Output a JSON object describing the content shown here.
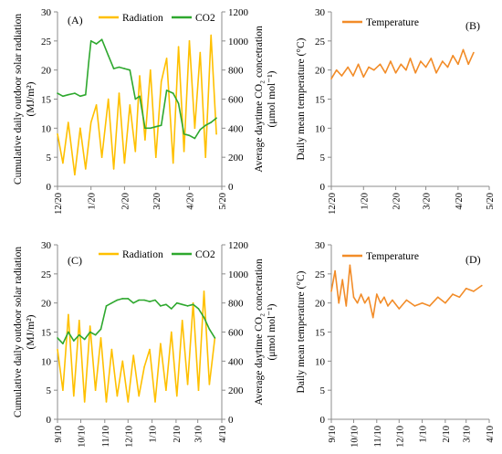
{
  "colors": {
    "radiation": "#FFC000",
    "co2": "#2EA82E",
    "temperature": "#F28C28",
    "axis": "#8c8c8c",
    "text": "#000000"
  },
  "chart_data": [
    {
      "panel": "(A)",
      "type": "line",
      "ylabel_left": "Cumulative daily outdoor solar radiation (MJ/m²)",
      "ylabel_right": "Average daytime CO₂ concetration (μmol mol⁻¹)",
      "ylim_left": [
        0,
        30
      ],
      "ylim_right": [
        0,
        1200
      ],
      "yticks_left": [
        0,
        5,
        10,
        15,
        20,
        25,
        30
      ],
      "yticks_right": [
        0,
        200,
        400,
        600,
        800,
        1000,
        1200
      ],
      "xlim": [
        "2019-12-20",
        "2020-05-20"
      ],
      "xticks": [
        "12/20",
        "1/20",
        "2/20",
        "3/20",
        "4/20",
        "5/20"
      ],
      "legend": [
        "Radiation",
        "CO2"
      ],
      "legend_position": "top",
      "series": [
        {
          "name": "Radiation",
          "axis": "left",
          "x": [
            "2019-12-20",
            "2019-12-25",
            "2019-12-30",
            "2020-01-05",
            "2020-01-10",
            "2020-01-15",
            "2020-01-20",
            "2020-01-25",
            "2020-01-30",
            "2020-02-05",
            "2020-02-10",
            "2020-02-15",
            "2020-02-20",
            "2020-02-25",
            "2020-03-01",
            "2020-03-05",
            "2020-03-10",
            "2020-03-15",
            "2020-03-20",
            "2020-03-25",
            "2020-03-30",
            "2020-04-05",
            "2020-04-10",
            "2020-04-15",
            "2020-04-20",
            "2020-04-25",
            "2020-04-30",
            "2020-05-05",
            "2020-05-10",
            "2020-05-15"
          ],
          "values": [
            9,
            4,
            11,
            2,
            10,
            3,
            11,
            14,
            5,
            15,
            3,
            16,
            4,
            14,
            6,
            19,
            8,
            20,
            5,
            18,
            22,
            4,
            24,
            6,
            25,
            10,
            23,
            5,
            26,
            9
          ]
        },
        {
          "name": "CO2",
          "axis": "right",
          "x": [
            "2019-12-20",
            "2019-12-25",
            "2019-12-30",
            "2020-01-05",
            "2020-01-10",
            "2020-01-15",
            "2020-01-18",
            "2020-01-20",
            "2020-01-25",
            "2020-01-30",
            "2020-02-05",
            "2020-02-10",
            "2020-02-15",
            "2020-02-20",
            "2020-02-25",
            "2020-03-01",
            "2020-03-05",
            "2020-03-10",
            "2020-03-15",
            "2020-03-20",
            "2020-03-25",
            "2020-03-30",
            "2020-04-05",
            "2020-04-10",
            "2020-04-15",
            "2020-04-20",
            "2020-04-25",
            "2020-04-30",
            "2020-05-05",
            "2020-05-10",
            "2020-05-15"
          ],
          "values": [
            640,
            620,
            630,
            640,
            620,
            630,
            860,
            1000,
            980,
            1010,
            900,
            810,
            820,
            810,
            800,
            600,
            620,
            400,
            400,
            410,
            420,
            660,
            640,
            570,
            360,
            350,
            330,
            390,
            420,
            440,
            470
          ]
        }
      ]
    },
    {
      "panel": "(B)",
      "type": "line",
      "ylabel": "Daily mean temperature (°C)",
      "ylim": [
        0,
        30
      ],
      "yticks": [
        0,
        5,
        10,
        15,
        20,
        25,
        30
      ],
      "xlim": [
        "2019-12-20",
        "2020-05-20"
      ],
      "xticks": [
        "12/20",
        "1/20",
        "2/20",
        "3/20",
        "4/20",
        "5/20"
      ],
      "legend": [
        "Temperature"
      ],
      "legend_position": "top-left",
      "series": [
        {
          "name": "Temperature",
          "x": [
            "2019-12-20",
            "2019-12-25",
            "2019-12-30",
            "2020-01-05",
            "2020-01-10",
            "2020-01-15",
            "2020-01-20",
            "2020-01-25",
            "2020-01-30",
            "2020-02-05",
            "2020-02-10",
            "2020-02-15",
            "2020-02-20",
            "2020-02-25",
            "2020-03-01",
            "2020-03-05",
            "2020-03-10",
            "2020-03-15",
            "2020-03-20",
            "2020-03-25",
            "2020-03-30",
            "2020-04-05",
            "2020-04-10",
            "2020-04-15",
            "2020-04-20",
            "2020-04-25",
            "2020-04-30",
            "2020-05-05"
          ],
          "values": [
            18.5,
            20,
            19,
            20.5,
            19,
            21,
            18.8,
            20.5,
            20,
            21,
            19.5,
            21.5,
            19.5,
            21,
            20,
            22,
            19.5,
            21.5,
            20.5,
            22,
            19.5,
            21.5,
            20.5,
            22.5,
            21,
            23.5,
            21,
            23
          ]
        }
      ]
    },
    {
      "panel": "(C)",
      "type": "line",
      "ylabel_left": "Cumulative daily outdoor solar radiation (MJ/m²)",
      "ylabel_right": "Average daytime CO₂ concetration (μmol mol⁻¹)",
      "ylim_left": [
        0,
        30
      ],
      "ylim_right": [
        0,
        1200
      ],
      "yticks_left": [
        0,
        5,
        10,
        15,
        20,
        25,
        30
      ],
      "yticks_right": [
        0,
        200,
        400,
        600,
        800,
        1000,
        1200
      ],
      "xlim": [
        "2020-09-10",
        "2021-04-10"
      ],
      "xticks": [
        "9/10",
        "10/10",
        "11/10",
        "12/10",
        "1/10",
        "2/10",
        "3/10",
        "4/10"
      ],
      "legend": [
        "Radiation",
        "CO2"
      ],
      "legend_position": "top",
      "series": [
        {
          "name": "Radiation",
          "axis": "left",
          "x": [
            "2020-09-10",
            "2020-09-17",
            "2020-09-24",
            "2020-10-01",
            "2020-10-08",
            "2020-10-15",
            "2020-10-22",
            "2020-10-29",
            "2020-11-05",
            "2020-11-12",
            "2020-11-19",
            "2020-11-26",
            "2020-12-03",
            "2020-12-10",
            "2020-12-17",
            "2020-12-24",
            "2020-12-31",
            "2021-01-07",
            "2021-01-14",
            "2021-01-21",
            "2021-01-28",
            "2021-02-04",
            "2021-02-11",
            "2021-02-18",
            "2021-02-25",
            "2021-03-04",
            "2021-03-11",
            "2021-03-18",
            "2021-03-25",
            "2021-04-01"
          ],
          "values": [
            12,
            5,
            18,
            4,
            17,
            3,
            16,
            5,
            14,
            3,
            12,
            4,
            10,
            3,
            11,
            4,
            9,
            12,
            3,
            13,
            5,
            15,
            4,
            17,
            6,
            20,
            5,
            22,
            6,
            14
          ]
        },
        {
          "name": "CO2",
          "axis": "right",
          "x": [
            "2020-09-10",
            "2020-09-17",
            "2020-09-24",
            "2020-10-01",
            "2020-10-08",
            "2020-10-15",
            "2020-10-22",
            "2020-10-29",
            "2020-11-05",
            "2020-11-12",
            "2020-11-19",
            "2020-11-26",
            "2020-12-03",
            "2020-12-10",
            "2020-12-17",
            "2020-12-24",
            "2020-12-31",
            "2021-01-07",
            "2021-01-14",
            "2021-01-21",
            "2021-01-28",
            "2021-02-04",
            "2021-02-11",
            "2021-02-18",
            "2021-02-25",
            "2021-03-04",
            "2021-03-11",
            "2021-03-18",
            "2021-03-25",
            "2021-04-01"
          ],
          "values": [
            560,
            520,
            600,
            540,
            580,
            550,
            600,
            580,
            620,
            780,
            800,
            820,
            830,
            830,
            800,
            820,
            820,
            810,
            820,
            780,
            790,
            760,
            800,
            790,
            780,
            790,
            760,
            700,
            620,
            560
          ]
        }
      ]
    },
    {
      "panel": "(D)",
      "type": "line",
      "ylabel": "Daily mean temperature (°C)",
      "ylim": [
        0,
        30
      ],
      "yticks": [
        0,
        5,
        10,
        15,
        20,
        25,
        30
      ],
      "xlim": [
        "2020-09-10",
        "2021-04-10"
      ],
      "xticks": [
        "9/10",
        "10/10",
        "11/10",
        "12/10",
        "1/10",
        "2/10",
        "3/10",
        "4/10"
      ],
      "legend": [
        "Temperature"
      ],
      "legend_position": "top-left",
      "series": [
        {
          "name": "Temperature",
          "x": [
            "2020-09-10",
            "2020-09-15",
            "2020-09-20",
            "2020-09-25",
            "2020-09-30",
            "2020-10-05",
            "2020-10-10",
            "2020-10-15",
            "2020-10-20",
            "2020-10-25",
            "2020-10-30",
            "2020-11-05",
            "2020-11-10",
            "2020-11-15",
            "2020-11-20",
            "2020-11-25",
            "2020-12-01",
            "2020-12-10",
            "2020-12-20",
            "2020-12-31",
            "2021-01-10",
            "2021-01-20",
            "2021-01-31",
            "2021-02-10",
            "2021-02-20",
            "2021-03-01",
            "2021-03-10",
            "2021-03-20",
            "2021-03-31"
          ],
          "values": [
            22,
            25.5,
            20,
            24,
            19.5,
            26.5,
            21,
            20,
            21.5,
            20,
            21,
            17.5,
            21.5,
            20,
            21,
            19.5,
            20.5,
            19,
            20.5,
            19.5,
            20,
            19.5,
            21,
            20,
            21.5,
            21,
            22.5,
            22,
            23
          ]
        }
      ]
    }
  ]
}
